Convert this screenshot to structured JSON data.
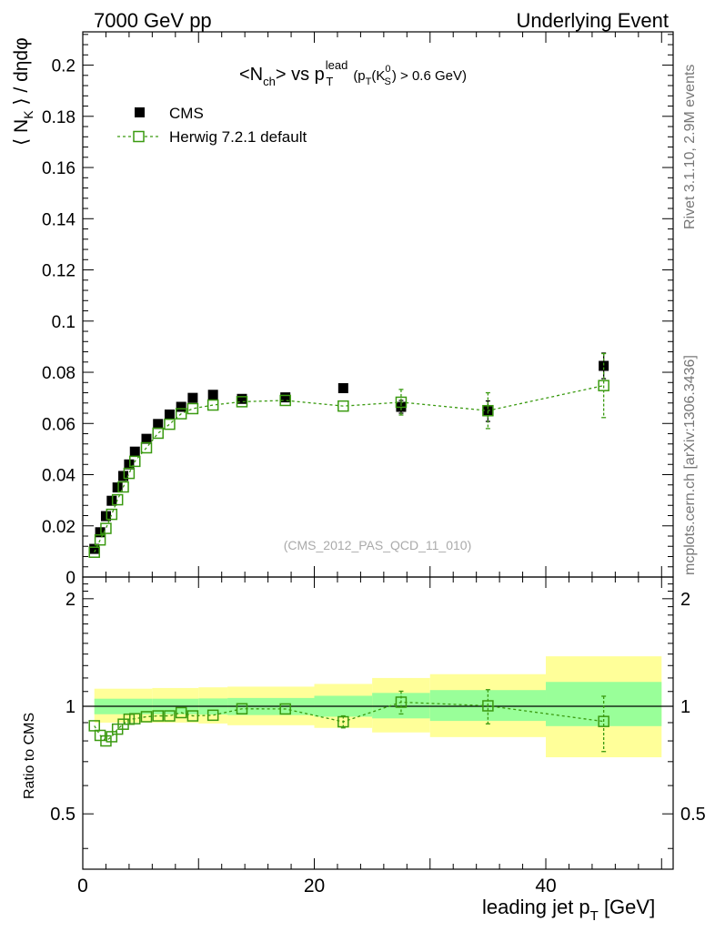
{
  "header": {
    "left": "7000 GeV pp",
    "right": "Underlying Event"
  },
  "side_labels": {
    "rivet": "Rivet 3.1.10,  2.9M events",
    "mcplots": "mcplots.cern.ch [arXiv:1306.3436]"
  },
  "colors": {
    "data": "#000000",
    "mc": "#3a9a10",
    "band_inner": "#99ff99",
    "band_outer": "#ffff99"
  },
  "chart_data": [
    {
      "type": "scatter",
      "panel": "main",
      "title": "<Nch> vs pT lead (pT(K0S) > 0.6 GeV)",
      "title_parts": {
        "a": "<N",
        "a_sub": "ch",
        "b": "> vs p",
        "b_sup": "lead",
        "b_sub": "T",
        "c": "(p",
        "c_sub": "T",
        "d": "(K",
        "d_sup": "0",
        "d_sub": "S",
        "e": ") > 0.6 GeV)"
      },
      "ylabel": "⟨ N_K ⟩ / dηdφ",
      "ylabel_parts": {
        "a": "⟨ N",
        "sub": "K",
        "b": " ⟩ / dηdφ"
      },
      "watermark": "(CMS_2012_PAS_QCD_11_010)",
      "xlim": [
        0,
        51
      ],
      "ylim": [
        0,
        0.213
      ],
      "yticks": [
        0,
        0.02,
        0.04,
        0.06,
        0.08,
        0.1,
        0.12,
        0.14,
        0.16,
        0.18,
        0.2
      ],
      "ytick_labels": [
        "0",
        "0.02",
        "0.04",
        "0.06",
        "0.08",
        "0.1",
        "0.12",
        "0.14",
        "0.16",
        "0.18",
        "0.2"
      ],
      "legend": {
        "position": "top-left",
        "entries": [
          "CMS",
          "Herwig 7.2.1 default"
        ]
      },
      "series": [
        {
          "name": "CMS",
          "marker": "filled-square",
          "x": [
            1.0,
            1.5,
            2.0,
            2.5,
            3.0,
            3.5,
            4.0,
            4.5,
            5.5,
            6.5,
            7.5,
            8.5,
            9.5,
            11.25,
            13.75,
            17.5,
            22.5,
            27.5,
            35.0,
            45.0
          ],
          "y": [
            0.011,
            0.0175,
            0.0238,
            0.0298,
            0.035,
            0.0395,
            0.044,
            0.049,
            0.054,
            0.0598,
            0.0635,
            0.0665,
            0.07,
            0.0712,
            0.0696,
            0.0702,
            0.0738,
            0.0665,
            0.0648,
            0.0825
          ],
          "yerr": [
            0.0006,
            0.0006,
            0.0006,
            0.0006,
            0.0006,
            0.0006,
            0.0006,
            0.0006,
            0.0006,
            0.0006,
            0.0006,
            0.0006,
            0.0006,
            0.0007,
            0.0008,
            0.001,
            0.0012,
            0.0025,
            0.004,
            0.005
          ]
        },
        {
          "name": "Herwig 7.2.1 default",
          "marker": "open-square",
          "line": "dashed",
          "x": [
            1.0,
            1.5,
            2.0,
            2.5,
            3.0,
            3.5,
            4.0,
            4.5,
            5.5,
            6.5,
            7.5,
            8.5,
            9.5,
            11.25,
            13.75,
            17.5,
            22.5,
            27.5,
            35.0,
            45.0
          ],
          "y": [
            0.0097,
            0.0145,
            0.019,
            0.0245,
            0.0302,
            0.0352,
            0.0405,
            0.0452,
            0.0505,
            0.0562,
            0.0597,
            0.0638,
            0.0658,
            0.0672,
            0.0685,
            0.069,
            0.0668,
            0.0683,
            0.065,
            0.0748
          ],
          "yerr": [
            0.0004,
            0.0004,
            0.0004,
            0.0004,
            0.0004,
            0.0004,
            0.0004,
            0.0004,
            0.0005,
            0.0005,
            0.0005,
            0.0005,
            0.0006,
            0.0007,
            0.0009,
            0.0012,
            0.0018,
            0.005,
            0.007,
            0.0125
          ]
        }
      ]
    },
    {
      "type": "scatter",
      "panel": "ratio",
      "ylabel": "Ratio to CMS",
      "xlabel": "leading jet pT [GeV]",
      "xlabel_parts": {
        "a": "leading jet p",
        "sub": "T",
        "b": " [GeV]"
      },
      "xlim": [
        0,
        51
      ],
      "ylim": [
        0.35,
        2.3
      ],
      "scale": "log",
      "xticks": [
        0,
        20,
        40
      ],
      "xtick_labels": [
        "0",
        "20",
        "40"
      ],
      "yticks": [
        0.5,
        1,
        2
      ],
      "ytick_labels": [
        "0.5",
        "1",
        "2"
      ],
      "bands": {
        "x_edges": [
          1,
          6,
          10,
          12.5,
          20,
          25,
          30,
          40,
          50
        ],
        "inner_lo": [
          0.95,
          0.95,
          0.948,
          0.945,
          0.935,
          0.925,
          0.91,
          0.88
        ],
        "inner_hi": [
          1.05,
          1.05,
          1.052,
          1.055,
          1.07,
          1.09,
          1.11,
          1.17
        ],
        "outer_lo": [
          0.9,
          0.9,
          0.895,
          0.885,
          0.87,
          0.845,
          0.82,
          0.72
        ],
        "outer_hi": [
          1.12,
          1.125,
          1.13,
          1.135,
          1.155,
          1.2,
          1.23,
          1.38
        ]
      },
      "series": [
        {
          "name": "Herwig 7.2.1 default / CMS",
          "marker": "open-square",
          "line": "dashed",
          "x": [
            1.0,
            1.5,
            2.0,
            2.5,
            3.0,
            3.5,
            4.0,
            4.5,
            5.5,
            6.5,
            7.5,
            8.5,
            9.5,
            11.25,
            13.75,
            17.5,
            22.5,
            27.5,
            35.0,
            45.0
          ],
          "y": [
            0.882,
            0.829,
            0.8,
            0.822,
            0.863,
            0.891,
            0.92,
            0.923,
            0.935,
            0.94,
            0.94,
            0.96,
            0.94,
            0.944,
            0.984,
            0.983,
            0.905,
            1.027,
            1.003,
            0.907
          ],
          "yerr": [
            0.02,
            0.02,
            0.02,
            0.02,
            0.02,
            0.02,
            0.02,
            0.02,
            0.02,
            0.02,
            0.02,
            0.02,
            0.02,
            0.02,
            0.02,
            0.025,
            0.035,
            0.075,
            0.11,
            0.16
          ]
        }
      ]
    }
  ]
}
